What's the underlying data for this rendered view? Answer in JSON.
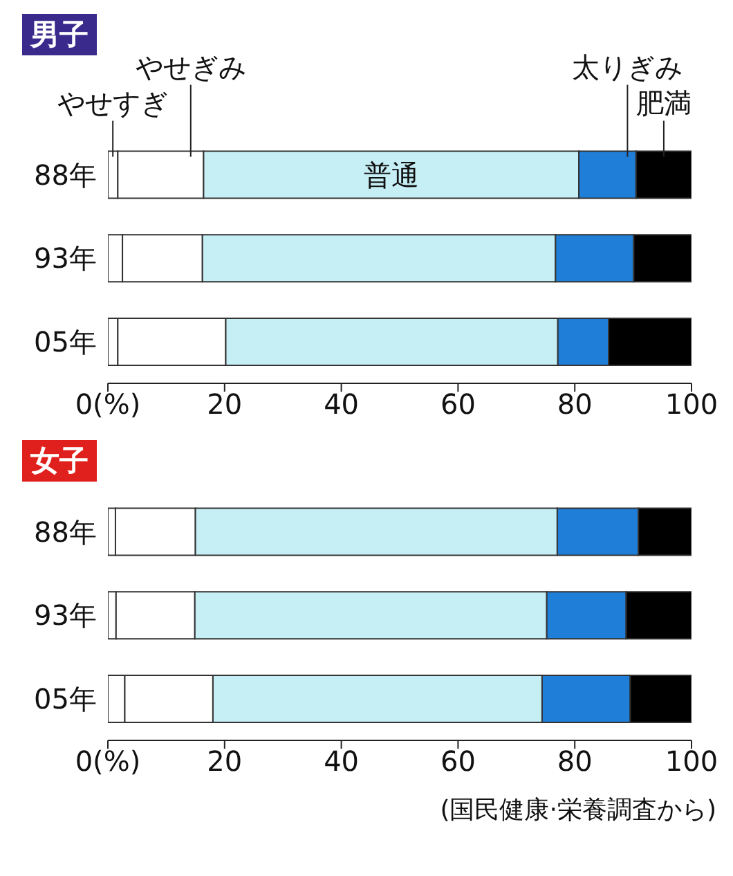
{
  "chart_data": [
    {
      "type": "bar",
      "orientation": "horizontal",
      "stacked": true,
      "title": "男子",
      "categories": [
        "88年",
        "93年",
        "05年"
      ],
      "xlim": [
        0,
        100
      ],
      "xticks": [
        {
          "value": 0,
          "label": "0(%)"
        },
        20,
        40,
        60,
        80,
        100
      ],
      "series": [
        {
          "name": "やせすぎ",
          "color": "#ffffff",
          "values": [
            1.7,
            2.5,
            1.7
          ]
        },
        {
          "name": "やせぎみ",
          "color": "#ffffff",
          "values": [
            14.7,
            13.7,
            18.5
          ]
        },
        {
          "name": "普通",
          "color": "#c6eef5",
          "values": [
            64.3,
            60.5,
            56.9
          ]
        },
        {
          "name": "太りぎみ",
          "color": "#1f7ed8",
          "values": [
            9.8,
            13.4,
            8.7
          ]
        },
        {
          "name": "肥満",
          "color": "#000000",
          "values": [
            9.5,
            9.9,
            14.2
          ]
        }
      ]
    },
    {
      "type": "bar",
      "orientation": "horizontal",
      "stacked": true,
      "title": "女子",
      "categories": [
        "88年",
        "93年",
        "05年"
      ],
      "xlim": [
        0,
        100
      ],
      "xticks": [
        {
          "value": 0,
          "label": "0(%)"
        },
        20,
        40,
        60,
        80,
        100
      ],
      "annotations": [
        "(国民健康·栄養調査から)"
      ],
      "series": [
        {
          "color": "#ffffff",
          "values": [
            1.3,
            1.4,
            2.9
          ]
        },
        {
          "color": "#ffffff",
          "values": [
            13.7,
            13.5,
            15.1
          ]
        },
        {
          "color": "#c6eef5",
          "values": [
            62.0,
            60.3,
            56.4
          ]
        },
        {
          "color": "#1f7ed8",
          "values": [
            13.9,
            13.6,
            15.1
          ]
        },
        {
          "color": "#000000",
          "values": [
            9.1,
            11.2,
            10.5
          ]
        }
      ]
    }
  ]
}
